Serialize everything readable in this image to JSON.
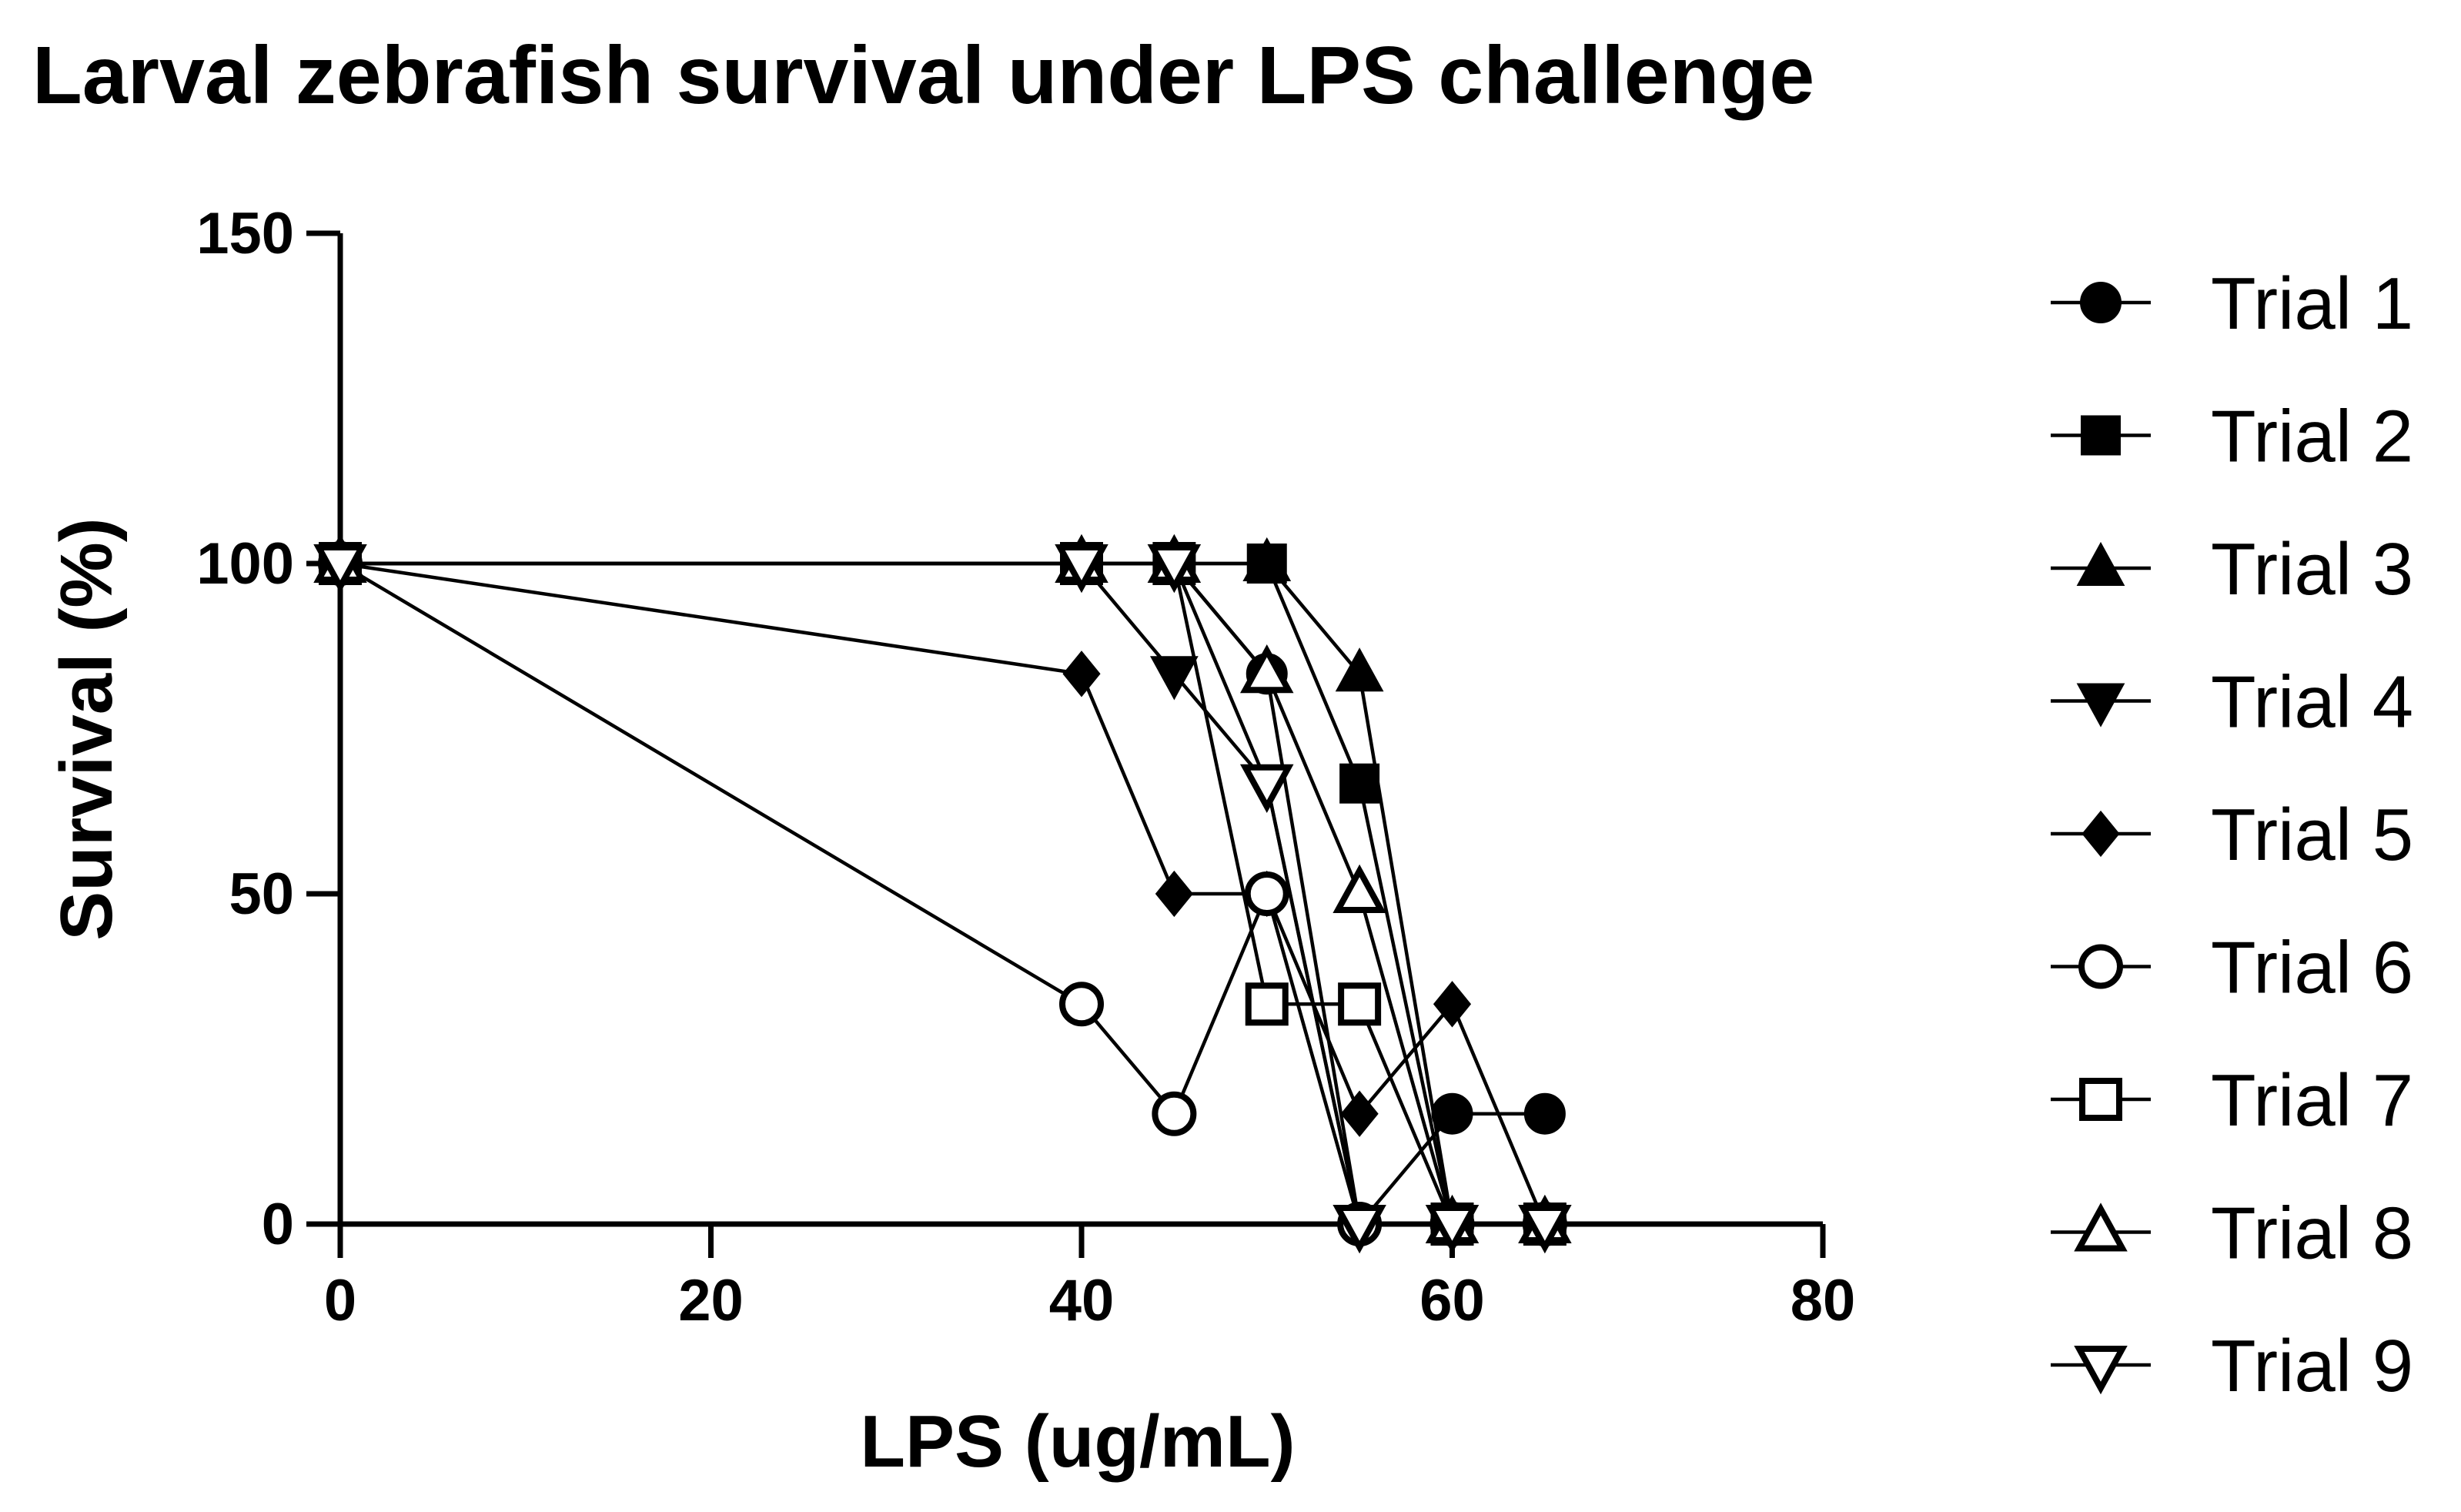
{
  "chart_data": {
    "type": "line",
    "title": "Larval zebrafish survival under LPS challenge",
    "xlabel": "LPS (ug/mL)",
    "ylabel": "Survival (%)",
    "xlim": [
      0,
      80
    ],
    "ylim": [
      0,
      150
    ],
    "xticks": [
      0,
      20,
      40,
      60,
      80
    ],
    "yticks": [
      0,
      50,
      100,
      150
    ],
    "grid": false,
    "legend_position": "right",
    "series": [
      {
        "name": "Trial 1",
        "marker": "circle-filled",
        "points": [
          [
            0,
            100
          ],
          [
            40,
            100
          ],
          [
            45,
            100
          ],
          [
            50,
            83.3
          ],
          [
            55,
            0
          ],
          [
            60,
            16.7
          ],
          [
            65,
            16.7
          ]
        ]
      },
      {
        "name": "Trial 2",
        "marker": "square-filled",
        "points": [
          [
            0,
            100
          ],
          [
            40,
            100
          ],
          [
            45,
            100
          ],
          [
            50,
            100
          ],
          [
            55,
            66.7
          ],
          [
            60,
            0
          ],
          [
            65,
            0
          ]
        ]
      },
      {
        "name": "Trial 3",
        "marker": "triangle-up-filled",
        "points": [
          [
            0,
            100
          ],
          [
            40,
            100
          ],
          [
            45,
            100
          ],
          [
            50,
            100
          ],
          [
            55,
            83.3
          ],
          [
            60,
            0
          ],
          [
            65,
            0
          ]
        ]
      },
      {
        "name": "Trial 4",
        "marker": "triangle-down-filled",
        "points": [
          [
            0,
            100
          ],
          [
            40,
            100
          ],
          [
            45,
            83.3
          ],
          [
            50,
            66.7
          ],
          [
            55,
            0
          ],
          [
            60,
            0
          ],
          [
            65,
            0
          ]
        ]
      },
      {
        "name": "Trial 5",
        "marker": "diamond-filled",
        "points": [
          [
            0,
            100
          ],
          [
            40,
            83.3
          ],
          [
            45,
            50
          ],
          [
            50,
            50
          ],
          [
            55,
            16.7
          ],
          [
            60,
            33.3
          ],
          [
            65,
            0
          ]
        ]
      },
      {
        "name": "Trial 6",
        "marker": "circle-open",
        "points": [
          [
            0,
            100
          ],
          [
            40,
            33.3
          ],
          [
            45,
            16.7
          ],
          [
            50,
            50
          ],
          [
            55,
            0
          ],
          [
            60,
            0
          ],
          [
            65,
            0
          ]
        ]
      },
      {
        "name": "Trial 7",
        "marker": "square-open",
        "points": [
          [
            0,
            100
          ],
          [
            40,
            100
          ],
          [
            45,
            100
          ],
          [
            50,
            33.3
          ],
          [
            55,
            33.3
          ],
          [
            60,
            0
          ],
          [
            65,
            0
          ]
        ]
      },
      {
        "name": "Trial 8",
        "marker": "triangle-up-open",
        "points": [
          [
            0,
            100
          ],
          [
            40,
            100
          ],
          [
            45,
            100
          ],
          [
            50,
            83.3
          ],
          [
            55,
            50
          ],
          [
            60,
            0
          ],
          [
            65,
            0
          ]
        ]
      },
      {
        "name": "Trial 9",
        "marker": "triangle-down-open",
        "points": [
          [
            0,
            100
          ],
          [
            40,
            100
          ],
          [
            45,
            100
          ],
          [
            50,
            66.7
          ],
          [
            55,
            0
          ],
          [
            60,
            0
          ],
          [
            65,
            0
          ]
        ]
      }
    ]
  }
}
